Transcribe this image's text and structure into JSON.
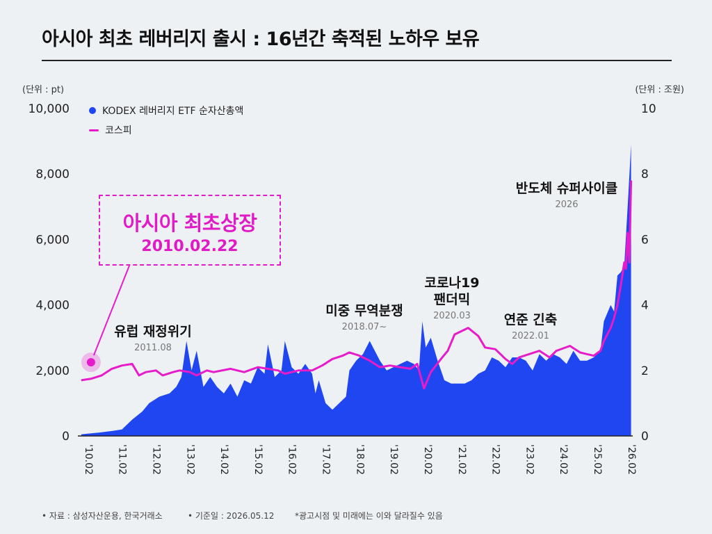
{
  "title": "아시아 최초 레버리지 출시 : 16년간 축적된 노하우 보유",
  "units": {
    "left": "(단위 : pt)",
    "right": "(단위 : 조원)"
  },
  "legend": {
    "aum": "KODEX 레버리지 ETF 순자산총액",
    "kospi": "코스피"
  },
  "callout": {
    "title": "아시아 최초상장",
    "date": "2010.02.22"
  },
  "annotations": {
    "euro": {
      "title": "유럽 재정위기",
      "date": "2011.08"
    },
    "trade": {
      "title": "미중 무역분쟁",
      "date": "2018.07~"
    },
    "covid": {
      "title1": "코로나19",
      "title2": "팬더믹",
      "date": "2020.03"
    },
    "fed": {
      "title": "연준 긴축",
      "date": "2022.01"
    },
    "semi": {
      "title": "반도체 슈퍼사이클",
      "date": "2026"
    }
  },
  "footer": {
    "source": "• 자료 : 삼성자산운용, 한국거래소",
    "base": "• 기준일 : 2026.05.12",
    "disclaimer": "*광고시점 및 미래에는 이와 달라질수 있음"
  },
  "colors": {
    "aum": "#1f46f0",
    "kospi": "#e61bc9",
    "axis": "#222222"
  },
  "chart_data": {
    "type": "area",
    "left_axis": {
      "label": "(단위 : pt)",
      "ylim": [
        0,
        10000
      ],
      "ticks": [
        "0",
        "2,000",
        "4,000",
        "6,000",
        "8,000",
        "10,000"
      ]
    },
    "right_axis": {
      "label": "(단위 : 조원)",
      "ylim": [
        0,
        10
      ],
      "ticks": [
        "0",
        "2",
        "4",
        "6",
        "8",
        "10"
      ]
    },
    "x_ticks": [
      "'10.02",
      "'11.02",
      "'12.02",
      "'13.02",
      "'14.02",
      "'15.02",
      "'16.02",
      "'17.02",
      "'18.02",
      "'19.02",
      "'20.02",
      "'21.02",
      "'22.02",
      "'23.02",
      "'24.02",
      "'25.02",
      "'26.02"
    ],
    "grid": false,
    "legend_position": "top-left",
    "series": [
      {
        "name": "KODEX 레버리지 ETF 순자산총액",
        "type": "area",
        "axis": "right",
        "points": [
          [
            2010.1,
            0.05
          ],
          [
            2010.6,
            0.1
          ],
          [
            2011.0,
            0.15
          ],
          [
            2011.3,
            0.2
          ],
          [
            2011.6,
            0.5
          ],
          [
            2011.9,
            0.75
          ],
          [
            2012.1,
            1.0
          ],
          [
            2012.4,
            1.2
          ],
          [
            2012.7,
            1.3
          ],
          [
            2012.9,
            1.5
          ],
          [
            2013.05,
            1.8
          ],
          [
            2013.2,
            2.9
          ],
          [
            2013.35,
            2.0
          ],
          [
            2013.5,
            2.6
          ],
          [
            2013.7,
            1.5
          ],
          [
            2013.9,
            1.8
          ],
          [
            2014.1,
            1.5
          ],
          [
            2014.3,
            1.3
          ],
          [
            2014.5,
            1.6
          ],
          [
            2014.7,
            1.2
          ],
          [
            2014.9,
            1.7
          ],
          [
            2015.1,
            1.6
          ],
          [
            2015.3,
            2.1
          ],
          [
            2015.5,
            1.9
          ],
          [
            2015.6,
            2.8
          ],
          [
            2015.8,
            1.8
          ],
          [
            2016.0,
            2.0
          ],
          [
            2016.1,
            2.9
          ],
          [
            2016.3,
            2.1
          ],
          [
            2016.5,
            1.9
          ],
          [
            2016.7,
            2.2
          ],
          [
            2016.9,
            1.9
          ],
          [
            2017.0,
            1.3
          ],
          [
            2017.1,
            1.7
          ],
          [
            2017.3,
            1.0
          ],
          [
            2017.5,
            0.8
          ],
          [
            2017.7,
            1.0
          ],
          [
            2017.9,
            1.2
          ],
          [
            2018.0,
            2.0
          ],
          [
            2018.2,
            2.3
          ],
          [
            2018.4,
            2.5
          ],
          [
            2018.6,
            2.9
          ],
          [
            2018.8,
            2.5
          ],
          [
            2018.9,
            2.3
          ],
          [
            2019.1,
            2.0
          ],
          [
            2019.3,
            2.1
          ],
          [
            2019.5,
            2.2
          ],
          [
            2019.7,
            2.3
          ],
          [
            2019.9,
            2.2
          ],
          [
            2020.05,
            2.0
          ],
          [
            2020.15,
            3.5
          ],
          [
            2020.25,
            2.7
          ],
          [
            2020.4,
            3.0
          ],
          [
            2020.6,
            2.3
          ],
          [
            2020.8,
            1.7
          ],
          [
            2021.0,
            1.6
          ],
          [
            2021.2,
            1.6
          ],
          [
            2021.4,
            1.6
          ],
          [
            2021.6,
            1.7
          ],
          [
            2021.8,
            1.9
          ],
          [
            2022.0,
            2.0
          ],
          [
            2022.2,
            2.4
          ],
          [
            2022.4,
            2.3
          ],
          [
            2022.6,
            2.1
          ],
          [
            2022.8,
            2.4
          ],
          [
            2023.0,
            2.4
          ],
          [
            2023.2,
            2.3
          ],
          [
            2023.4,
            2.0
          ],
          [
            2023.6,
            2.5
          ],
          [
            2023.8,
            2.3
          ],
          [
            2024.0,
            2.5
          ],
          [
            2024.2,
            2.4
          ],
          [
            2024.4,
            2.2
          ],
          [
            2024.6,
            2.6
          ],
          [
            2024.8,
            2.3
          ],
          [
            2025.0,
            2.3
          ],
          [
            2025.2,
            2.4
          ],
          [
            2025.4,
            2.6
          ],
          [
            2025.5,
            3.5
          ],
          [
            2025.7,
            4.0
          ],
          [
            2025.8,
            3.8
          ],
          [
            2025.9,
            4.9
          ],
          [
            2026.0,
            5.0
          ],
          [
            2026.1,
            5.2
          ],
          [
            2026.2,
            7.0
          ],
          [
            2026.3,
            8.9
          ]
        ]
      },
      {
        "name": "코스피",
        "type": "line",
        "axis": "left",
        "points": [
          [
            2010.1,
            1700
          ],
          [
            2010.4,
            1750
          ],
          [
            2010.7,
            1850
          ],
          [
            2011.0,
            2050
          ],
          [
            2011.3,
            2150
          ],
          [
            2011.6,
            2200
          ],
          [
            2011.8,
            1850
          ],
          [
            2012.0,
            1950
          ],
          [
            2012.3,
            2000
          ],
          [
            2012.5,
            1850
          ],
          [
            2012.8,
            1950
          ],
          [
            2013.0,
            2000
          ],
          [
            2013.3,
            1950
          ],
          [
            2013.5,
            1850
          ],
          [
            2013.8,
            2000
          ],
          [
            2014.0,
            1950
          ],
          [
            2014.5,
            2050
          ],
          [
            2014.9,
            1950
          ],
          [
            2015.3,
            2100
          ],
          [
            2015.6,
            2050
          ],
          [
            2015.9,
            2000
          ],
          [
            2016.1,
            1900
          ],
          [
            2016.5,
            2000
          ],
          [
            2016.9,
            2000
          ],
          [
            2017.2,
            2150
          ],
          [
            2017.5,
            2350
          ],
          [
            2017.8,
            2450
          ],
          [
            2018.0,
            2550
          ],
          [
            2018.3,
            2450
          ],
          [
            2018.6,
            2300
          ],
          [
            2018.9,
            2100
          ],
          [
            2019.2,
            2150
          ],
          [
            2019.5,
            2100
          ],
          [
            2019.8,
            2050
          ],
          [
            2020.0,
            2200
          ],
          [
            2020.2,
            1450
          ],
          [
            2020.4,
            1950
          ],
          [
            2020.7,
            2350
          ],
          [
            2020.9,
            2600
          ],
          [
            2021.1,
            3100
          ],
          [
            2021.5,
            3300
          ],
          [
            2021.8,
            3050
          ],
          [
            2022.0,
            2700
          ],
          [
            2022.3,
            2650
          ],
          [
            2022.6,
            2350
          ],
          [
            2022.8,
            2200
          ],
          [
            2023.0,
            2400
          ],
          [
            2023.3,
            2500
          ],
          [
            2023.6,
            2600
          ],
          [
            2023.9,
            2400
          ],
          [
            2024.1,
            2600
          ],
          [
            2024.5,
            2750
          ],
          [
            2024.8,
            2550
          ],
          [
            2025.0,
            2500
          ],
          [
            2025.2,
            2450
          ],
          [
            2025.4,
            2600
          ],
          [
            2025.5,
            2900
          ],
          [
            2025.7,
            3300
          ],
          [
            2025.8,
            3600
          ],
          [
            2025.9,
            4000
          ],
          [
            2026.0,
            4600
          ],
          [
            2026.1,
            5300
          ],
          [
            2026.15,
            5100
          ],
          [
            2026.2,
            6200
          ],
          [
            2026.25,
            5300
          ],
          [
            2026.3,
            7800
          ]
        ]
      }
    ]
  }
}
